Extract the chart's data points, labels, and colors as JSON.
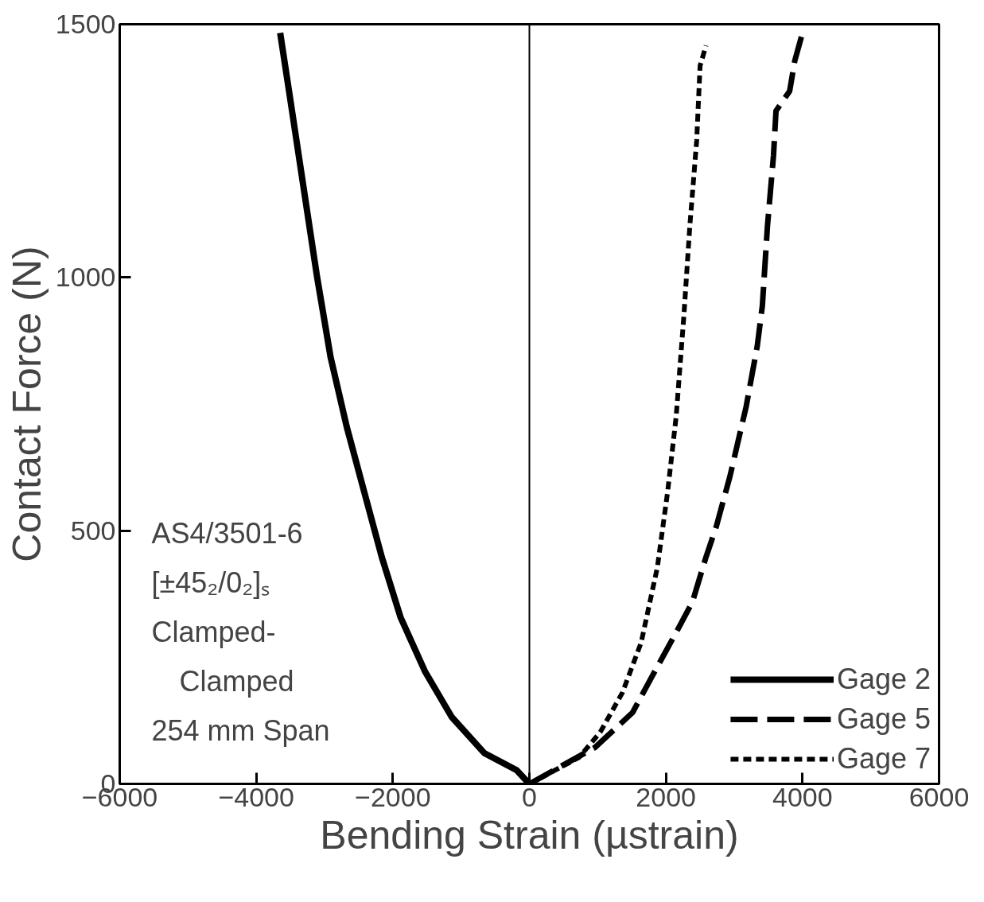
{
  "chart_data": {
    "type": "line",
    "xlabel": "Bending Strain (µstrain)",
    "ylabel": "Contact Force (N)",
    "xlim": [
      -6000,
      6000
    ],
    "xticks": [
      -6000,
      -4000,
      -2000,
      0,
      2000,
      4000,
      6000
    ],
    "ylim": [
      0,
      1500
    ],
    "yticks": [
      0,
      500,
      1000,
      1500
    ],
    "grid": false,
    "legend": "bottom right",
    "ref_lines": [
      {
        "axis": "x",
        "value": 0,
        "color": "#000000",
        "line_style": "solid"
      }
    ],
    "annotations": [
      "AS4/3501-6",
      "[±45₂/0₂]ₛ",
      "Clamped-",
      "Clamped",
      "254 mm Span"
    ],
    "series": [
      {
        "name": "Gage 2",
        "color": "#000000",
        "line_style": "solid",
        "x": [
          -3650,
          -3500,
          -3300,
          -3112,
          -2912,
          -2675,
          -2400,
          -2162,
          -1887,
          -1525,
          -1137,
          -662,
          -187,
          0
        ],
        "values": [
          1483,
          1350,
          1171,
          1003,
          843,
          705,
          567,
          448,
          329,
          221,
          132,
          61,
          27,
          0
        ]
      },
      {
        "name": "Gage 5",
        "color": "#000000",
        "line_style": "dashed",
        "x": [
          0,
          962,
          1512,
          1787,
          2150,
          2387,
          2587,
          2737,
          2937,
          3175,
          3337,
          3412,
          3487,
          3575,
          3612,
          3812,
          3887,
          4000
        ],
        "values": [
          0,
          72,
          141,
          210,
          299,
          359,
          448,
          508,
          607,
          745,
          864,
          944,
          1102,
          1240,
          1329,
          1368,
          1428,
          1483
        ]
      },
      {
        "name": "Gage 7",
        "color": "#000000",
        "line_style": "dotted",
        "x": [
          0,
          725,
          1037,
          1362,
          1637,
          1875,
          2025,
          2150,
          2262,
          2350,
          2450,
          2500,
          2587
        ],
        "values": [
          0,
          52,
          102,
          180,
          279,
          428,
          577,
          726,
          923,
          1102,
          1270,
          1418,
          1458
        ]
      }
    ]
  }
}
